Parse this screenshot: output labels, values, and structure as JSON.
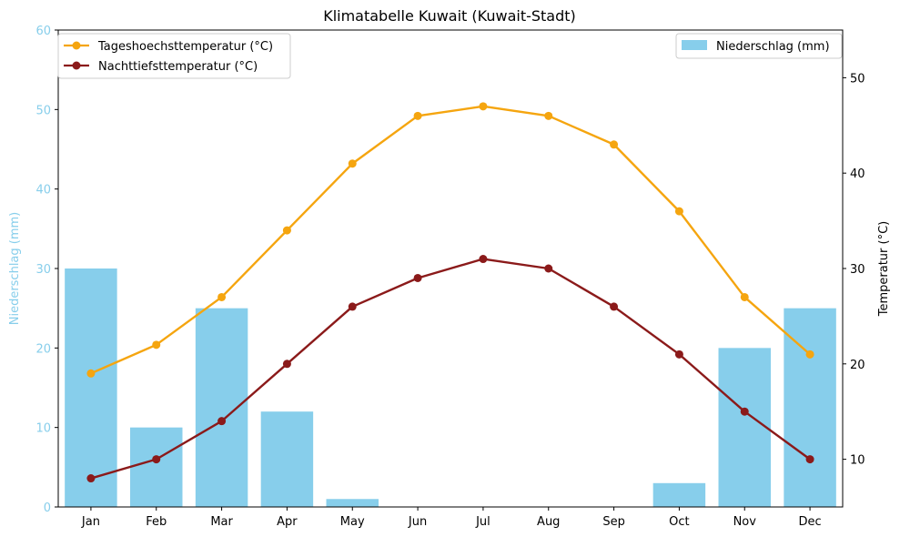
{
  "chart_data": {
    "type": "bar+line",
    "title": "Klimatabelle Kuwait (Kuwait-Stadt)",
    "categories": [
      "Jan",
      "Feb",
      "Mar",
      "Apr",
      "May",
      "Jun",
      "Jul",
      "Aug",
      "Sep",
      "Oct",
      "Nov",
      "Dec"
    ],
    "left_axis": {
      "label": "Niederschlag (mm)",
      "ylim": [
        0,
        60
      ],
      "ticks": [
        0,
        10,
        20,
        30,
        40,
        50,
        60
      ],
      "color": "#87ceeb"
    },
    "right_axis": {
      "label": "Temperatur (°C)",
      "ylim": [
        5,
        55
      ],
      "ticks": [
        10,
        20,
        30,
        40,
        50
      ],
      "color": "#000000"
    },
    "bar_series": {
      "name": "Niederschlag (mm)",
      "values": [
        30,
        10,
        25,
        12,
        1,
        0,
        0,
        0,
        0,
        3,
        20,
        25
      ],
      "color": "#87ceeb",
      "axis": "left"
    },
    "line_series": [
      {
        "name": "Tageshoechsttemperatur (°C)",
        "values": [
          19,
          22,
          27,
          34,
          41,
          46,
          47,
          46,
          43,
          36,
          27,
          21
        ],
        "color": "#f5a50f",
        "axis": "right"
      },
      {
        "name": "Nachttiefsttemperatur (°C)",
        "values": [
          8,
          10,
          14,
          20,
          26,
          29,
          31,
          30,
          26,
          21,
          15,
          10
        ],
        "color": "#8b1a1a",
        "axis": "right"
      }
    ],
    "legend_lines_position": "top-left",
    "legend_bars_position": "top-right",
    "grid": false
  }
}
